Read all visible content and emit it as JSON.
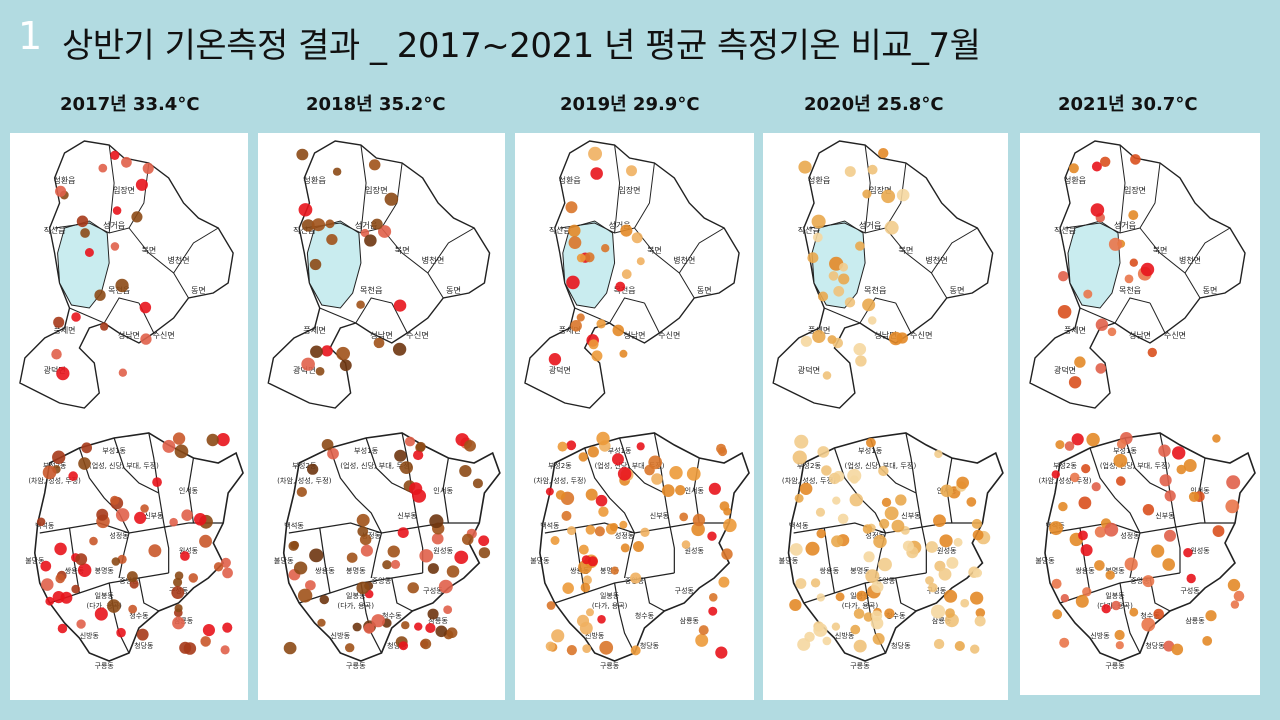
{
  "slide": {
    "number": "1",
    "title": "상반기 기온측정 결과  _ 2017~2021 년 평균 측정기온 비교_7월"
  },
  "colors": {
    "background": "#b2dbe1",
    "panel": "#ffffff",
    "district_fill": "#c9ecef",
    "dot_red": "#e8141c",
    "dot_salmon": "#e0604a",
    "dot_brown": "#8c4a16",
    "dot_orange": "#e38a28",
    "dot_light": "#f0c27a"
  },
  "labels": {
    "upper_regions": [
      "성환읍",
      "입장면",
      "직산읍",
      "성거읍",
      "북면",
      "병천면",
      "목천읍",
      "동면",
      "풍세면",
      "성남면",
      "수신면",
      "광덕면"
    ],
    "lower_regions": [
      "부성1동",
      "부성2동",
      "(업성, 신당, 부대, 두정)",
      "(차암, 성성, 두정)",
      "인서동",
      "백석동",
      "성정동",
      "신부동",
      "원성동",
      "불당동",
      "쌍용동",
      "봉명동",
      "중앙동",
      "구성동",
      "일봉동",
      "(다가, 용곡)",
      "청수동",
      "삼룡동",
      "신방동",
      "청당동",
      "구룡동"
    ]
  },
  "panels": [
    {
      "year_label": "2017년  33.4°C",
      "palette": [
        "#e8141c",
        "#e0604a",
        "#8c4a16",
        "#c9582a",
        "#a63a1a"
      ]
    },
    {
      "year_label": "2018년  35.2°C",
      "palette": [
        "#8c4a16",
        "#a0521a",
        "#e8141c",
        "#e0604a",
        "#6e3510"
      ]
    },
    {
      "year_label": "2019년  29.9°C",
      "palette": [
        "#e38a28",
        "#ec9a3a",
        "#d9762a",
        "#e8141c",
        "#f0b060"
      ]
    },
    {
      "year_label": "2020년  25.8°C",
      "palette": [
        "#f0c27a",
        "#f2cc8c",
        "#e9a94e",
        "#f5d7a0",
        "#e38a28"
      ]
    },
    {
      "year_label": "2021년  30.7°C",
      "palette": [
        "#e0604a",
        "#e8141c",
        "#e9754a",
        "#d9501e",
        "#e38a28"
      ]
    }
  ]
}
